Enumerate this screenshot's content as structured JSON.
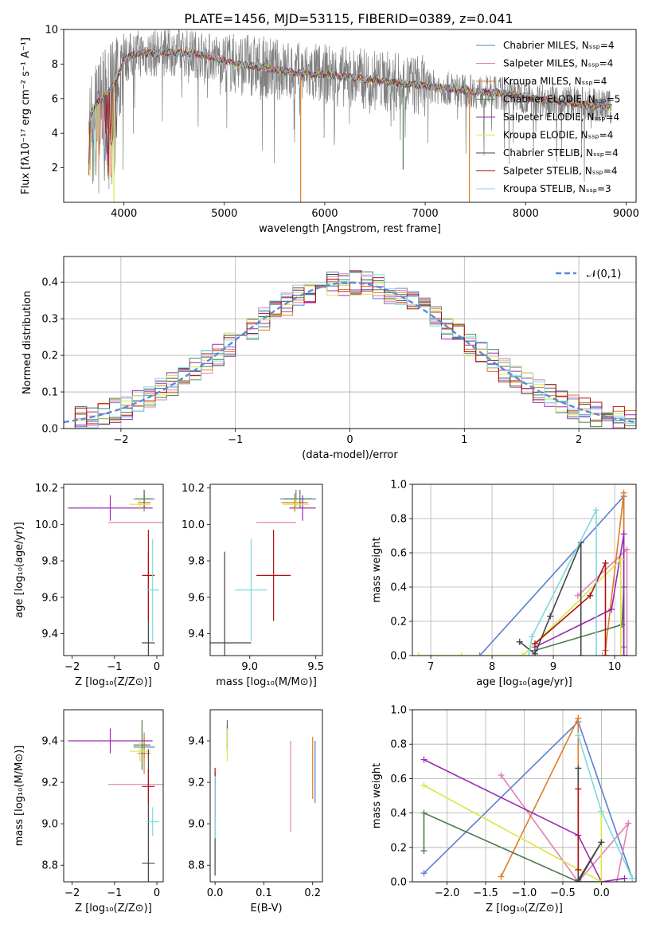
{
  "figure": {
    "title": "PLATE=1456, MJD=53115, FIBERID=0389, z=0.041"
  },
  "chart_data": [
    {
      "id": "spectrum",
      "type": "line",
      "title": "PLATE=1456, MJD=53115, FIBERID=0389, z=0.041",
      "xlabel": "wavelength [Angstrom, rest frame]",
      "ylabel": "Flux [fλ10⁻¹⁷ erg cm⁻² s⁻¹ A⁻¹]",
      "xlim": [
        3400,
        9100
      ],
      "ylim": [
        0,
        10
      ],
      "xticks": [
        4000,
        5000,
        6000,
        7000,
        8000,
        9000
      ],
      "yticks": [
        2,
        4,
        6,
        8,
        10
      ],
      "grid": false,
      "legend_position": "top-right",
      "data_color": "#808080",
      "data_wavelength_range": [
        3650,
        8860
      ],
      "series": [
        {
          "name": "Chabrier MILES, Nₛₛₚ=4",
          "color": "#5b7fd1"
        },
        {
          "name": "Salpeter MILES, Nₛₛₚ=4",
          "color": "#e37fb5"
        },
        {
          "name": "Kroupa MILES, Nₛₛₚ=4",
          "color": "#e07b20"
        },
        {
          "name": "Chabrier ELODIE, Nₛₛₚ=5",
          "color": "#4f7a4f"
        },
        {
          "name": "Salpeter ELODIE, Nₛₛₚ=4",
          "color": "#9a2ab5"
        },
        {
          "name": "Kroupa ELODIE, Nₛₛₚ=4",
          "color": "#d6e842"
        },
        {
          "name": "Chabrier STELIB, Nₛₛₚ=4",
          "color": "#444444"
        },
        {
          "name": "Salpeter STELIB, Nₛₛₚ=4",
          "color": "#b01010"
        },
        {
          "name": "Kroupa STELIB, Nₛₛₚ=3",
          "color": "#7ed8e0"
        }
      ],
      "continuum": {
        "x": [
          3650,
          3700,
          3800,
          3900,
          4000,
          4100,
          4300,
          4500,
          4700,
          4900,
          5100,
          5300,
          5500,
          5700,
          6000,
          6300,
          6600,
          6900,
          7200,
          7500,
          7800,
          8100,
          8400,
          8700,
          8860
        ],
        "y": [
          4.8,
          5.5,
          6.2,
          6.8,
          8.2,
          8.6,
          8.6,
          8.7,
          8.6,
          8.4,
          8.0,
          7.9,
          7.7,
          7.5,
          7.4,
          7.2,
          7.0,
          6.8,
          6.6,
          6.4,
          6.3,
          6.0,
          5.8,
          5.6,
          5.5
        ]
      },
      "spikes": [
        {
          "x": 5760,
          "y": 0.0,
          "color": "#e07b20"
        },
        {
          "x": 7440,
          "y": 0.0,
          "color": "#e07b20"
        },
        {
          "x": 6780,
          "y": 1.9,
          "color": "#4f7a4f"
        },
        {
          "x": 3900,
          "y": 0.0,
          "color": "#d6e842"
        }
      ]
    },
    {
      "id": "residuals",
      "type": "line",
      "xlabel": "(data-model)/error",
      "ylabel": "Normed distribution",
      "xlim": [
        -2.5,
        2.5
      ],
      "ylim": [
        0,
        0.47
      ],
      "xticks": [
        -2,
        -1,
        0,
        1,
        2
      ],
      "yticks": [
        0.0,
        0.1,
        0.2,
        0.3,
        0.4
      ],
      "grid": true,
      "legend_position": "top-right",
      "gaussian": {
        "name": "𝒩(0,1)",
        "mean": 0,
        "sigma": 1,
        "color": "#5b8bd6"
      }
    },
    {
      "id": "age_vs_Z",
      "type": "scatter",
      "xlabel": "Z [log₁₀(Z/Z⊙)]",
      "ylabel": "age  [log₁₀(age/yr)]",
      "xlim": [
        -2.2,
        0.15
      ],
      "ylim": [
        9.28,
        10.22
      ],
      "xticks": [
        -2,
        -1,
        0
      ],
      "yticks": [
        9.4,
        9.6,
        9.8,
        10.0,
        10.2
      ],
      "points": [
        {
          "x": -0.3,
          "y": 10.14,
          "xerr": 0.25,
          "yerr": 0.05,
          "color": "#5b7fd1"
        },
        {
          "x": -0.5,
          "y": 10.01,
          "xerr": 0.65,
          "yerr": 0.0,
          "color": "#e37fb5"
        },
        {
          "x": -0.3,
          "y": 10.12,
          "xerr": 0.15,
          "yerr": 0.05,
          "color": "#e07b20"
        },
        {
          "x": -0.3,
          "y": 10.14,
          "xerr": 0.2,
          "yerr": 0.05,
          "color": "#4f7a4f"
        },
        {
          "x": -1.1,
          "y": 10.09,
          "xerr": 1.0,
          "yerr": 0.07,
          "color": "#9a2ab5"
        },
        {
          "x": -0.4,
          "y": 10.11,
          "xerr": 0.25,
          "yerr": 0.03,
          "color": "#d6e842"
        },
        {
          "x": -0.2,
          "y": 9.35,
          "xerr": 0.15,
          "yerr": 0.5,
          "color": "#444444"
        },
        {
          "x": -0.2,
          "y": 9.72,
          "xerr": 0.15,
          "yerr": 0.25,
          "color": "#b01010"
        },
        {
          "x": -0.1,
          "y": 9.64,
          "xerr": 0.15,
          "yerr": 0.28,
          "color": "#7ed8e0"
        }
      ]
    },
    {
      "id": "age_vs_mass",
      "type": "scatter",
      "xlabel": "mass [log₁₀(M/M⊙)]",
      "ylabel": "",
      "xlim": [
        8.7,
        9.55
      ],
      "ylim": [
        9.28,
        10.22
      ],
      "xticks": [
        9.0,
        9.5
      ],
      "yticks": [
        9.4,
        9.6,
        9.8,
        10.0,
        10.2
      ],
      "points": [
        {
          "x": 9.35,
          "y": 10.14,
          "xerr": 0.12,
          "yerr": 0.05,
          "color": "#5b7fd1"
        },
        {
          "x": 9.2,
          "y": 10.01,
          "xerr": 0.15,
          "yerr": 0.0,
          "color": "#e37fb5"
        },
        {
          "x": 9.34,
          "y": 10.12,
          "xerr": 0.1,
          "yerr": 0.05,
          "color": "#e07b20"
        },
        {
          "x": 9.38,
          "y": 10.14,
          "xerr": 0.12,
          "yerr": 0.05,
          "color": "#4f7a4f"
        },
        {
          "x": 9.4,
          "y": 10.09,
          "xerr": 0.1,
          "yerr": 0.07,
          "color": "#9a2ab5"
        },
        {
          "x": 9.35,
          "y": 10.11,
          "xerr": 0.1,
          "yerr": 0.03,
          "color": "#d6e842"
        },
        {
          "x": 8.81,
          "y": 9.35,
          "xerr": 0.2,
          "yerr": 0.5,
          "color": "#444444"
        },
        {
          "x": 9.18,
          "y": 9.72,
          "xerr": 0.13,
          "yerr": 0.25,
          "color": "#b01010"
        },
        {
          "x": 9.01,
          "y": 9.64,
          "xerr": 0.12,
          "yerr": 0.28,
          "color": "#7ed8e0"
        }
      ]
    },
    {
      "id": "weight_vs_age",
      "type": "line",
      "xlabel": "age  [log₁₀(age/yr)]",
      "ylabel": "mass weight",
      "xlim": [
        6.7,
        10.35
      ],
      "ylim": [
        0,
        1
      ],
      "xticks": [
        7,
        8,
        9,
        10
      ],
      "yticks": [
        0.0,
        0.2,
        0.4,
        0.6,
        0.8,
        1.0
      ],
      "grid": true,
      "series": [
        {
          "color": "#5b7fd1",
          "x": [
            7.8,
            10.15,
            10.15
          ],
          "y": [
            0.0,
            0.93,
            0.05
          ]
        },
        {
          "color": "#e37fb5",
          "x": [
            9.4,
            10.2,
            10.2,
            9.8
          ],
          "y": [
            0.35,
            0.62,
            0.0,
            0.0
          ]
        },
        {
          "color": "#e07b20",
          "x": [
            9.85,
            10.15,
            10.15,
            10.1
          ],
          "y": [
            0.03,
            0.95,
            0.0,
            0.0
          ]
        },
        {
          "color": "#4f7a4f",
          "x": [
            8.7,
            10.12,
            10.15,
            10.15
          ],
          "y": [
            0.03,
            0.18,
            0.4,
            0.0
          ]
        },
        {
          "color": "#9a2ab5",
          "x": [
            8.7,
            9.95,
            10.15,
            10.15
          ],
          "y": [
            0.05,
            0.27,
            0.71,
            0.0
          ]
        },
        {
          "color": "#d6e842",
          "x": [
            6.8,
            7.5,
            8.5,
            10.1,
            10.1
          ],
          "y": [
            0.0,
            0.0,
            0.0,
            0.56,
            0.0
          ]
        },
        {
          "color": "#444444",
          "x": [
            8.45,
            8.7,
            8.95,
            9.45,
            9.45
          ],
          "y": [
            0.08,
            0.01,
            0.23,
            0.66,
            0.0
          ]
        },
        {
          "color": "#b01010",
          "x": [
            8.7,
            9.6,
            9.85,
            9.85
          ],
          "y": [
            0.07,
            0.35,
            0.54,
            0.0
          ]
        },
        {
          "color": "#7ed8e0",
          "x": [
            8.6,
            8.65,
            9.7,
            9.7
          ],
          "y": [
            0.0,
            0.11,
            0.85,
            0.0
          ]
        }
      ]
    },
    {
      "id": "mass_vs_Z",
      "type": "scatter",
      "xlabel": "Z [log₁₀(Z/Z⊙)]",
      "ylabel": "mass [log₁₀(M/M⊙)]",
      "xlim": [
        -2.2,
        0.15
      ],
      "ylim": [
        8.72,
        9.55
      ],
      "xticks": [
        -2,
        -1,
        0
      ],
      "yticks": [
        8.8,
        9.0,
        9.2,
        9.4
      ],
      "points": [
        {
          "x": -0.3,
          "y": 9.37,
          "xerr": 0.25,
          "yerr": 0.05,
          "color": "#5b7fd1"
        },
        {
          "x": -0.5,
          "y": 9.19,
          "xerr": 0.65,
          "yerr": 0.0,
          "color": "#e37fb5"
        },
        {
          "x": -0.3,
          "y": 9.34,
          "xerr": 0.15,
          "yerr": 0.1,
          "color": "#e07b20"
        },
        {
          "x": -0.35,
          "y": 9.38,
          "xerr": 0.2,
          "yerr": 0.12,
          "color": "#4f7a4f"
        },
        {
          "x": -1.1,
          "y": 9.4,
          "xerr": 1.0,
          "yerr": 0.06,
          "color": "#9a2ab5"
        },
        {
          "x": -0.4,
          "y": 9.35,
          "xerr": 0.25,
          "yerr": 0.05,
          "color": "#d6e842"
        },
        {
          "x": -0.2,
          "y": 8.81,
          "xerr": 0.15,
          "yerr": 0.55,
          "color": "#444444"
        },
        {
          "x": -0.2,
          "y": 9.18,
          "xerr": 0.15,
          "yerr": 0.08,
          "color": "#b01010"
        },
        {
          "x": -0.1,
          "y": 9.01,
          "xerr": 0.15,
          "yerr": 0.07,
          "color": "#7ed8e0"
        }
      ]
    },
    {
      "id": "mass_vs_EBV",
      "type": "scatter",
      "xlabel": "E(B-V)",
      "ylabel": "",
      "xlim": [
        -0.01,
        0.22
      ],
      "ylim": [
        8.72,
        9.55
      ],
      "xticks": [
        0.0,
        0.1,
        0.2
      ],
      "yticks": [
        8.8,
        9.0,
        9.2,
        9.4
      ],
      "points": [
        {
          "x": 0.205,
          "y": 9.25,
          "xerr": 0,
          "yerr": 0.15,
          "color": "#5b7fd1"
        },
        {
          "x": 0.155,
          "y": 9.18,
          "xerr": 0,
          "yerr": 0.22,
          "color": "#e37fb5"
        },
        {
          "x": 0.2,
          "y": 9.27,
          "xerr": 0,
          "yerr": 0.15,
          "color": "#e07b20"
        },
        {
          "x": 0.025,
          "y": 9.43,
          "xerr": 0,
          "yerr": 0.07,
          "color": "#4f7a4f"
        },
        {
          "x": 0.025,
          "y": 9.41,
          "xerr": 0,
          "yerr": 0.06,
          "color": "#9a2ab5"
        },
        {
          "x": 0.025,
          "y": 9.38,
          "xerr": 0,
          "yerr": 0.08,
          "color": "#d6e842"
        },
        {
          "x": 0.0,
          "y": 9.0,
          "xerr": 0,
          "yerr": 0.25,
          "color": "#444444"
        },
        {
          "x": 0.0,
          "y": 9.15,
          "xerr": 0,
          "yerr": 0.12,
          "color": "#b01010"
        },
        {
          "x": 0.0,
          "y": 9.08,
          "xerr": 0,
          "yerr": 0.15,
          "color": "#7ed8e0"
        }
      ]
    },
    {
      "id": "weight_vs_Z",
      "type": "line",
      "xlabel": "Z [log₁₀(Z/Z⊙)]",
      "ylabel": "mass weight",
      "xlim": [
        -2.45,
        0.45
      ],
      "ylim": [
        0,
        1
      ],
      "xticks": [
        -2.0,
        -1.5,
        -1.0,
        -0.5,
        0.0
      ],
      "yticks": [
        0.0,
        0.2,
        0.4,
        0.6,
        0.8,
        1.0
      ],
      "grid": true,
      "series": [
        {
          "color": "#5b7fd1",
          "x": [
            -2.3,
            -0.3,
            0.4
          ],
          "y": [
            0.05,
            0.93,
            0.02
          ]
        },
        {
          "color": "#e37fb5",
          "x": [
            -1.3,
            -0.3,
            0.35,
            0.2
          ],
          "y": [
            0.62,
            0.0,
            0.34,
            0.0
          ]
        },
        {
          "color": "#e07b20",
          "x": [
            -1.3,
            -0.3,
            -0.3
          ],
          "y": [
            0.03,
            0.95,
            0.0
          ]
        },
        {
          "color": "#4f7a4f",
          "x": [
            -2.3,
            -2.3,
            -0.3,
            0.0
          ],
          "y": [
            0.18,
            0.4,
            0.0,
            0.0
          ]
        },
        {
          "color": "#9a2ab5",
          "x": [
            -2.3,
            -0.3,
            0.0,
            0.3
          ],
          "y": [
            0.71,
            0.27,
            0.0,
            0.02
          ]
        },
        {
          "color": "#d6e842",
          "x": [
            -2.3,
            0.0,
            0.0
          ],
          "y": [
            0.56,
            0.0,
            0.4
          ]
        },
        {
          "color": "#444444",
          "x": [
            -0.3,
            -0.3,
            0.0,
            -0.3
          ],
          "y": [
            0.66,
            0.0,
            0.23,
            0.01
          ]
        },
        {
          "color": "#b01010",
          "x": [
            -0.3,
            -0.3
          ],
          "y": [
            0.54,
            0.07
          ]
        },
        {
          "color": "#7ed8e0",
          "x": [
            -0.3,
            0.0,
            0.4
          ],
          "y": [
            0.85,
            0.41,
            0.02
          ]
        }
      ]
    }
  ]
}
